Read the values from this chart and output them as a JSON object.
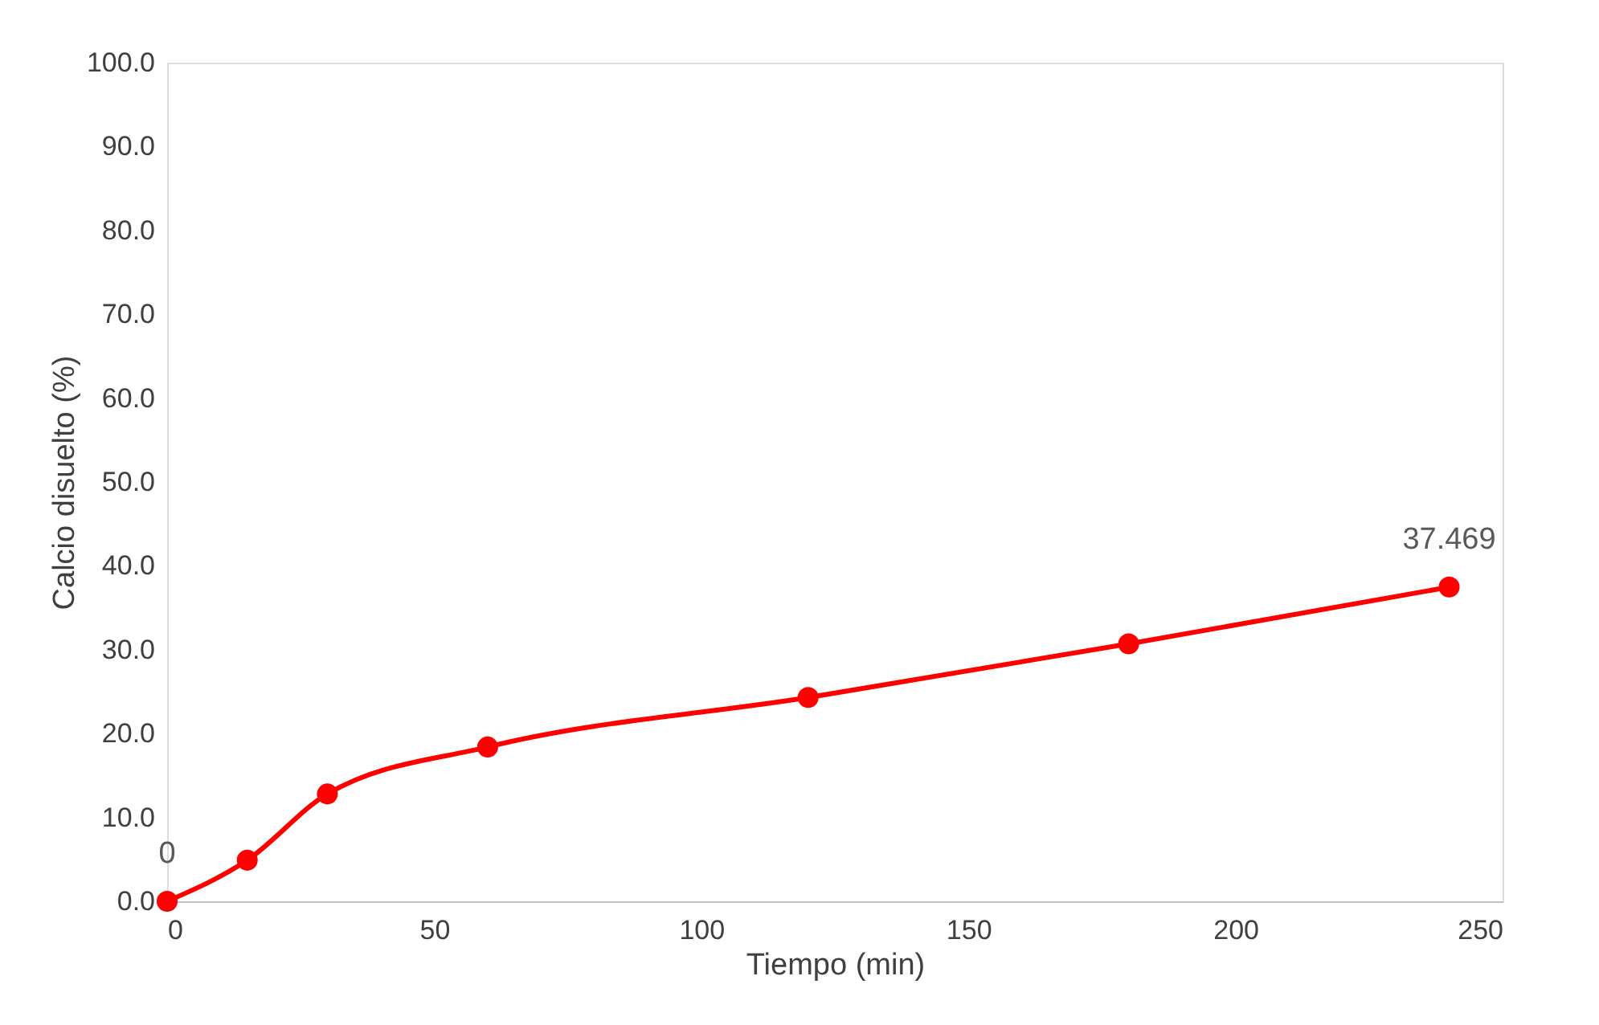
{
  "chart_data": {
    "type": "line",
    "xlabel": "Tiempo (min)",
    "ylabel": "Calcio disuelto (%)",
    "x": [
      0,
      15,
      30,
      60,
      120,
      180,
      240
    ],
    "series": [
      {
        "color": "#ff0000",
        "values": [
          0,
          4.9,
          12.8,
          18.4,
          24.3,
          30.7,
          37.469
        ],
        "value_labels": [
          "0",
          null,
          null,
          null,
          null,
          null,
          "37.469"
        ]
      }
    ],
    "xlim": [
      0,
      250
    ],
    "xticks": [
      0,
      50,
      100,
      150,
      200,
      250
    ],
    "ylim": [
      0,
      100
    ],
    "yticks": [
      {
        "value": 0,
        "label": "0.0"
      },
      {
        "value": 10,
        "label": "10.0"
      },
      {
        "value": 20,
        "label": "20.0"
      },
      {
        "value": 30,
        "label": "30.0"
      },
      {
        "value": 40,
        "label": "40.0"
      },
      {
        "value": 50,
        "label": "50.0"
      },
      {
        "value": 60,
        "label": "60.0"
      },
      {
        "value": 70,
        "label": "70.0"
      },
      {
        "value": 80,
        "label": "80.0"
      },
      {
        "value": 90,
        "label": "90.0"
      },
      {
        "value": 100,
        "label": "100.0"
      }
    ],
    "grid": false,
    "marker": "circle",
    "line_style": "solid"
  }
}
